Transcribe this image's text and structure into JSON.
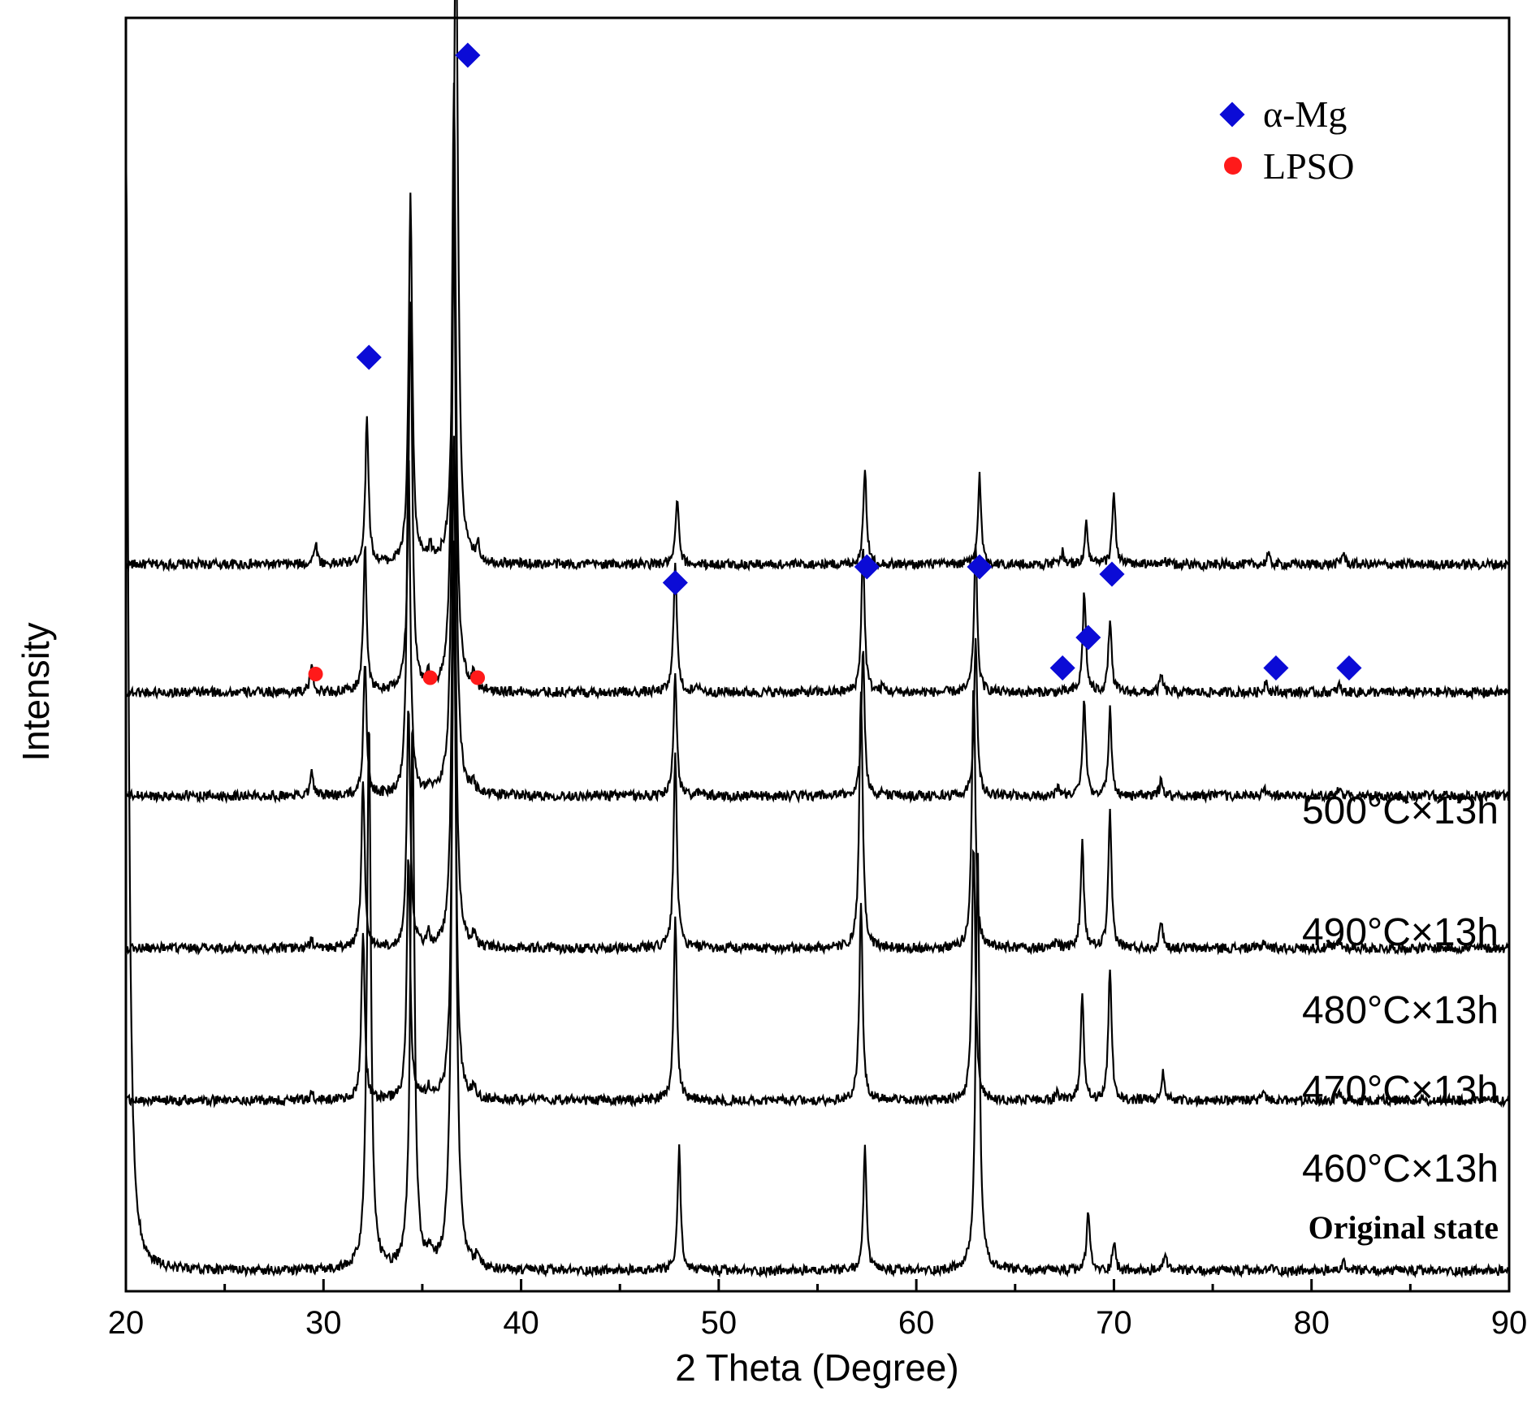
{
  "chart_data": {
    "type": "line",
    "xlabel": "2 Theta (Degree)",
    "ylabel": "Intensity",
    "xlim": [
      20,
      90
    ],
    "xticks": [
      20,
      30,
      40,
      50,
      60,
      70,
      80,
      90
    ],
    "grid": false,
    "legend": {
      "placement": "top-right",
      "entries": [
        {
          "label": "α-Mg",
          "marker": "diamond",
          "color": "#0b0bd6"
        },
        {
          "label": "LPSO",
          "marker": "circle",
          "color": "#ff1a1a"
        }
      ]
    },
    "curve_labels": [
      "500°C×13h",
      "490°C×13h",
      "480°C×13h",
      "470°C×13h",
      "460°C×13h",
      "Original state"
    ],
    "series": [
      {
        "name": "500°C×13h",
        "baseline": 0.58,
        "peaks": [
          [
            29.6,
            0.018
          ],
          [
            32.2,
            0.12
          ],
          [
            34.4,
            0.3
          ],
          [
            35.4,
            0.012
          ],
          [
            36.7,
            0.55
          ],
          [
            37.8,
            0.014
          ],
          [
            47.9,
            0.055
          ],
          [
            57.4,
            0.081
          ],
          [
            63.2,
            0.073
          ],
          [
            67.4,
            0.01
          ],
          [
            68.6,
            0.033
          ],
          [
            70.0,
            0.06
          ],
          [
            72.5,
            0.004
          ],
          [
            77.8,
            0.008
          ],
          [
            81.6,
            0.01
          ]
        ]
      },
      {
        "name": "490°C×13h",
        "baseline": 0.475,
        "peaks": [
          [
            29.4,
            0.023
          ],
          [
            32.1,
            0.12
          ],
          [
            34.4,
            0.32
          ],
          [
            35.3,
            0.012
          ],
          [
            36.6,
            0.5
          ],
          [
            37.6,
            0.012
          ],
          [
            47.8,
            0.11
          ],
          [
            49.0,
            0.006
          ],
          [
            57.3,
            0.12
          ],
          [
            58.3,
            0.005
          ],
          [
            63.0,
            0.12
          ],
          [
            68.5,
            0.083
          ],
          [
            69.8,
            0.06
          ],
          [
            72.4,
            0.014
          ],
          [
            77.7,
            0.01
          ],
          [
            81.4,
            0.006
          ]
        ]
      },
      {
        "name": "480°C×13h",
        "baseline": 0.39,
        "peaks": [
          [
            29.4,
            0.023
          ],
          [
            32.1,
            0.11
          ],
          [
            34.3,
            0.28
          ],
          [
            35.3,
            0.008
          ],
          [
            36.6,
            0.48
          ],
          [
            37.6,
            0.008
          ],
          [
            47.8,
            0.1
          ],
          [
            49.1,
            0.004
          ],
          [
            57.3,
            0.12
          ],
          [
            58.3,
            0.004
          ],
          [
            63.0,
            0.13
          ],
          [
            67.2,
            0.008
          ],
          [
            68.5,
            0.08
          ],
          [
            69.8,
            0.07
          ],
          [
            72.4,
            0.014
          ],
          [
            77.6,
            0.006
          ],
          [
            81.4,
            0.006
          ]
        ]
      },
      {
        "name": "470°C×13h",
        "baseline": 0.265,
        "peaks": [
          [
            29.4,
            0.006
          ],
          [
            32.0,
            0.14
          ],
          [
            34.3,
            0.2
          ],
          [
            35.3,
            0.01
          ],
          [
            36.6,
            0.42
          ],
          [
            37.6,
            0.01
          ],
          [
            47.8,
            0.16
          ],
          [
            57.2,
            0.21
          ],
          [
            62.9,
            0.22
          ],
          [
            67.1,
            0.006
          ],
          [
            68.4,
            0.085
          ],
          [
            69.8,
            0.11
          ],
          [
            72.4,
            0.023
          ],
          [
            77.6,
            0.006
          ],
          [
            81.4,
            0.006
          ]
        ]
      },
      {
        "name": "460°C×13h",
        "baseline": 0.14,
        "peaks": [
          [
            29.4,
            0.006
          ],
          [
            32.0,
            0.14
          ],
          [
            34.3,
            0.2
          ],
          [
            35.3,
            0.01
          ],
          [
            36.6,
            0.43
          ],
          [
            37.6,
            0.01
          ],
          [
            47.8,
            0.15
          ],
          [
            57.2,
            0.16
          ],
          [
            62.9,
            0.21
          ],
          [
            67.1,
            0.006
          ],
          [
            68.4,
            0.085
          ],
          [
            69.8,
            0.11
          ],
          [
            72.5,
            0.023
          ],
          [
            77.6,
            0.006
          ],
          [
            81.4,
            0.006
          ]
        ]
      },
      {
        "name": "Original state",
        "baseline": 0.0,
        "peaks": [
          [
            20.0,
            0.93
          ],
          [
            32.3,
            0.45
          ],
          [
            34.5,
            0.45
          ],
          [
            35.4,
            0.012
          ],
          [
            36.6,
            0.6
          ],
          [
            37.8,
            0.012
          ],
          [
            48.0,
            0.1
          ],
          [
            57.4,
            0.1
          ],
          [
            63.1,
            0.35
          ],
          [
            68.7,
            0.05
          ],
          [
            70.0,
            0.025
          ],
          [
            72.6,
            0.016
          ],
          [
            78.0,
            0.004
          ],
          [
            81.6,
            0.008
          ]
        ]
      }
    ],
    "annotations": {
      "alpha_mg": [
        [
          32.3,
          0.75
        ],
        [
          37.3,
          0.998
        ],
        [
          47.8,
          0.565
        ],
        [
          57.5,
          0.578
        ],
        [
          63.2,
          0.578
        ],
        [
          69.9,
          0.572
        ],
        [
          68.7,
          0.52
        ],
        [
          67.4,
          0.495
        ],
        [
          78.2,
          0.495
        ],
        [
          81.9,
          0.495
        ]
      ],
      "lpso": [
        [
          29.6,
          0.49
        ],
        [
          35.4,
          0.487
        ],
        [
          37.8,
          0.487
        ]
      ]
    }
  }
}
